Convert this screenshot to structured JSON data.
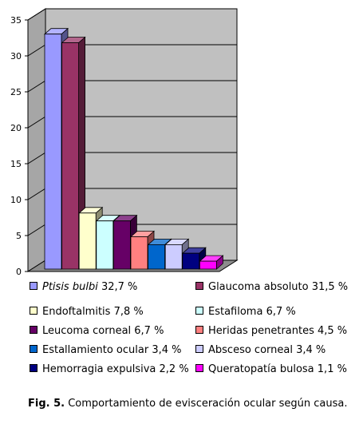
{
  "chart_data": {
    "type": "bar",
    "style": "3d",
    "categories": [
      "Ptisis bulbi",
      "Glaucoma absoluto",
      "Endoftalmitis",
      "Estafiloma",
      "Leucoma corneal",
      "Heridas penetrantes",
      "Estallamiento ocular",
      "Absceso corneal",
      "Hemorragia expulsiva",
      "Queratopatía bulosa"
    ],
    "values": [
      32.7,
      31.5,
      7.8,
      6.7,
      6.7,
      4.5,
      3.4,
      3.4,
      2.2,
      1.1
    ],
    "colors": [
      "#9999FF",
      "#993366",
      "#FFFFCC",
      "#CCFFFF",
      "#660066",
      "#FF8080",
      "#0066CC",
      "#CCCCFF",
      "#000080",
      "#FF00FF"
    ],
    "ylim": [
      0,
      35
    ],
    "yticks": [
      "0",
      "5",
      "10",
      "15",
      "20",
      "25",
      "30",
      "35"
    ],
    "grid": true,
    "legend_position": "bottom",
    "title": "",
    "xlabel": "",
    "ylabel": ""
  },
  "legend": [
    {
      "italic": "Ptisis bulbi",
      "text": " 32,7 %"
    },
    {
      "italic": "",
      "text": "Glaucoma absoluto 31,5 %"
    },
    {
      "italic": "",
      "text": "Endoftalmitis 7,8 %"
    },
    {
      "italic": "",
      "text": "Estafiloma 6,7 %"
    },
    {
      "italic": "",
      "text": "Leucoma corneal 6,7 %"
    },
    {
      "italic": "",
      "text": "Heridas penetrantes 4,5 %"
    },
    {
      "italic": "",
      "text": "Estallamiento ocular 3,4 %"
    },
    {
      "italic": "",
      "text": "Absceso corneal 3,4 %"
    },
    {
      "italic": "",
      "text": "Hemorragia expulsiva 2,2 %"
    },
    {
      "italic": "",
      "text": "Queratopatía bulosa 1,1 %"
    }
  ],
  "caption": {
    "label": "Fig. 5.",
    "text": " Comportamiento de evisceración ocular según causa."
  }
}
